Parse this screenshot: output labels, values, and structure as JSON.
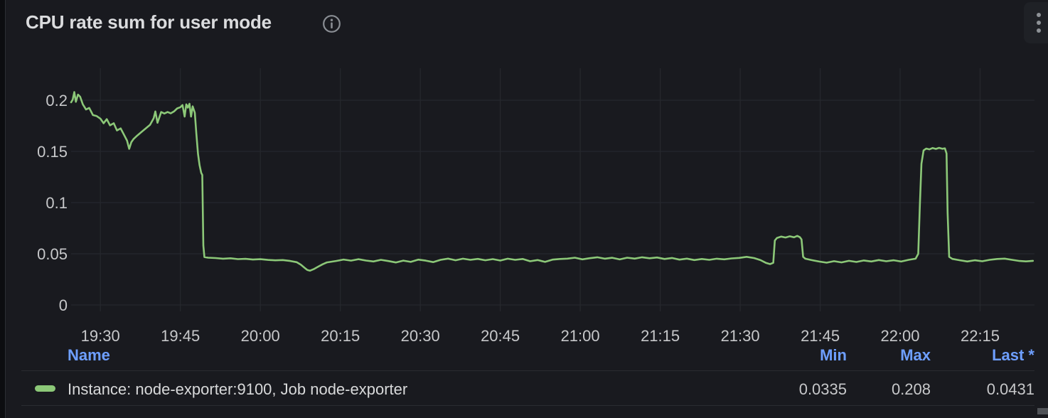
{
  "panel": {
    "title": "CPU rate sum for user mode",
    "info_icon": "info-circle",
    "menu_icon": "kebab-vertical-dots"
  },
  "colors": {
    "panel_bg": "#191a1f",
    "dashboard_bg": "#0c0d10",
    "grid": "#26282d",
    "tick_text": "#c7c8ca",
    "series_green": "#8cc878",
    "legend_header_blue": "#6e9fff",
    "title_text": "#dbdcde"
  },
  "legend": {
    "columns": {
      "name": "Name",
      "min": "Min",
      "max": "Max",
      "last": "Last *"
    },
    "rows": [
      {
        "label": "Instance: node-exporter:9100, Job node-exporter",
        "min": "0.0335",
        "max": "0.208",
        "last": "0.0431",
        "color": "#8cc878"
      }
    ]
  },
  "chart_data": {
    "type": "line",
    "title": "CPU rate sum for user mode",
    "xlabel": "time",
    "ylabel": "",
    "x_unit": "minute-of-day",
    "x_range_minutes": [
      1164.5,
      1345.2
    ],
    "ylim": [
      0,
      0.22
    ],
    "grid": true,
    "legend_position": "bottom-table",
    "x_ticks": [
      {
        "t": 1170,
        "label": "19:30"
      },
      {
        "t": 1185,
        "label": "19:45"
      },
      {
        "t": 1200,
        "label": "20:00"
      },
      {
        "t": 1215,
        "label": "20:15"
      },
      {
        "t": 1230,
        "label": "20:30"
      },
      {
        "t": 1245,
        "label": "20:45"
      },
      {
        "t": 1260,
        "label": "21:00"
      },
      {
        "t": 1275,
        "label": "21:15"
      },
      {
        "t": 1290,
        "label": "21:30"
      },
      {
        "t": 1305,
        "label": "21:45"
      },
      {
        "t": 1320,
        "label": "22:00"
      },
      {
        "t": 1335,
        "label": "22:15"
      }
    ],
    "y_ticks": [
      {
        "v": 0,
        "label": "0"
      },
      {
        "v": 0.05,
        "label": "0.05"
      },
      {
        "v": 0.1,
        "label": "0.1"
      },
      {
        "v": 0.15,
        "label": "0.15"
      },
      {
        "v": 0.2,
        "label": "0.2"
      }
    ],
    "series": [
      {
        "name": "Instance: node-exporter:9100, Job node-exporter",
        "color": "#8cc878",
        "stats": {
          "min": 0.0335,
          "max": 0.208,
          "last": 0.0431
        },
        "points": [
          [
            1164.5,
            0.198
          ],
          [
            1164.8,
            0.2005
          ],
          [
            1165.1,
            0.208
          ],
          [
            1165.4,
            0.1985
          ],
          [
            1165.8,
            0.2055
          ],
          [
            1166.2,
            0.2035
          ],
          [
            1166.7,
            0.196
          ],
          [
            1167.3,
            0.191
          ],
          [
            1167.9,
            0.1925
          ],
          [
            1168.6,
            0.1855
          ],
          [
            1169.3,
            0.1845
          ],
          [
            1170.0,
            0.182
          ],
          [
            1170.6,
            0.1775
          ],
          [
            1171.2,
            0.1815
          ],
          [
            1171.8,
            0.1755
          ],
          [
            1172.5,
            0.1775
          ],
          [
            1173.1,
            0.1705
          ],
          [
            1173.8,
            0.1725
          ],
          [
            1174.4,
            0.1665
          ],
          [
            1175.0,
            0.1605
          ],
          [
            1175.4,
            0.1525
          ],
          [
            1175.8,
            0.159
          ],
          [
            1176.2,
            0.162
          ],
          [
            1176.9,
            0.1655
          ],
          [
            1177.7,
            0.169
          ],
          [
            1178.5,
            0.1725
          ],
          [
            1179.3,
            0.176
          ],
          [
            1180.0,
            0.1825
          ],
          [
            1180.3,
            0.189
          ],
          [
            1180.7,
            0.178
          ],
          [
            1181.1,
            0.184
          ],
          [
            1181.4,
            0.1885
          ],
          [
            1182.0,
            0.187
          ],
          [
            1182.6,
            0.1885
          ],
          [
            1183.2,
            0.1872
          ],
          [
            1183.8,
            0.189
          ],
          [
            1184.4,
            0.192
          ],
          [
            1185.0,
            0.1932
          ],
          [
            1185.4,
            0.1953
          ],
          [
            1185.8,
            0.184
          ],
          [
            1186.1,
            0.196
          ],
          [
            1186.4,
            0.1928
          ],
          [
            1186.7,
            0.1965
          ],
          [
            1187.0,
            0.184
          ],
          [
            1187.3,
            0.194
          ],
          [
            1187.7,
            0.1878
          ],
          [
            1188.0,
            0.167
          ],
          [
            1188.3,
            0.1475
          ],
          [
            1188.6,
            0.1365
          ],
          [
            1188.9,
            0.129
          ],
          [
            1189.1,
            0.127
          ],
          [
            1189.3,
            0.058
          ],
          [
            1189.5,
            0.0468
          ],
          [
            1190.2,
            0.0462
          ],
          [
            1191.6,
            0.0458
          ],
          [
            1193.0,
            0.0452
          ],
          [
            1194.4,
            0.0456
          ],
          [
            1195.8,
            0.0448
          ],
          [
            1197.2,
            0.0451
          ],
          [
            1198.6,
            0.0444
          ],
          [
            1200.0,
            0.0447
          ],
          [
            1201.4,
            0.044
          ],
          [
            1202.8,
            0.0436
          ],
          [
            1204.2,
            0.0439
          ],
          [
            1205.6,
            0.043
          ],
          [
            1206.8,
            0.0418
          ],
          [
            1207.6,
            0.0393
          ],
          [
            1208.3,
            0.0363
          ],
          [
            1208.8,
            0.0342
          ],
          [
            1209.3,
            0.0335
          ],
          [
            1210.1,
            0.0352
          ],
          [
            1210.9,
            0.0376
          ],
          [
            1211.7,
            0.0398
          ],
          [
            1212.5,
            0.0416
          ],
          [
            1214.2,
            0.043
          ],
          [
            1215.6,
            0.0444
          ],
          [
            1217.0,
            0.0433
          ],
          [
            1218.4,
            0.0447
          ],
          [
            1219.8,
            0.0434
          ],
          [
            1221.2,
            0.0425
          ],
          [
            1222.6,
            0.0441
          ],
          [
            1224.0,
            0.0429
          ],
          [
            1225.4,
            0.0415
          ],
          [
            1226.8,
            0.0433
          ],
          [
            1228.2,
            0.0421
          ],
          [
            1229.6,
            0.0443
          ],
          [
            1231.0,
            0.0433
          ],
          [
            1232.4,
            0.0419
          ],
          [
            1233.8,
            0.0441
          ],
          [
            1235.2,
            0.0453
          ],
          [
            1236.6,
            0.0437
          ],
          [
            1238.0,
            0.0452
          ],
          [
            1239.4,
            0.0441
          ],
          [
            1240.8,
            0.045
          ],
          [
            1242.2,
            0.0437
          ],
          [
            1243.6,
            0.0448
          ],
          [
            1245.0,
            0.0434
          ],
          [
            1246.4,
            0.0452
          ],
          [
            1247.8,
            0.0441
          ],
          [
            1249.2,
            0.0449
          ],
          [
            1250.6,
            0.0427
          ],
          [
            1252.0,
            0.0439
          ],
          [
            1253.4,
            0.0421
          ],
          [
            1254.8,
            0.0443
          ],
          [
            1256.2,
            0.0449
          ],
          [
            1257.6,
            0.0453
          ],
          [
            1259.0,
            0.0462
          ],
          [
            1260.4,
            0.0446
          ],
          [
            1261.8,
            0.0457
          ],
          [
            1263.2,
            0.0466
          ],
          [
            1264.6,
            0.0452
          ],
          [
            1266.0,
            0.0461
          ],
          [
            1267.4,
            0.0445
          ],
          [
            1268.8,
            0.0462
          ],
          [
            1270.2,
            0.0453
          ],
          [
            1271.6,
            0.0466
          ],
          [
            1273.0,
            0.0456
          ],
          [
            1274.4,
            0.0464
          ],
          [
            1275.8,
            0.0449
          ],
          [
            1277.2,
            0.0459
          ],
          [
            1278.6,
            0.0443
          ],
          [
            1280.0,
            0.0453
          ],
          [
            1281.4,
            0.0439
          ],
          [
            1282.8,
            0.0449
          ],
          [
            1284.2,
            0.0441
          ],
          [
            1285.6,
            0.0452
          ],
          [
            1287.0,
            0.0446
          ],
          [
            1288.4,
            0.0455
          ],
          [
            1289.8,
            0.046
          ],
          [
            1291.2,
            0.047
          ],
          [
            1292.6,
            0.0458
          ],
          [
            1293.8,
            0.0438
          ],
          [
            1294.8,
            0.0412
          ],
          [
            1295.6,
            0.0399
          ],
          [
            1296.2,
            0.0412
          ],
          [
            1296.5,
            0.063
          ],
          [
            1296.9,
            0.0655
          ],
          [
            1297.7,
            0.0668
          ],
          [
            1298.5,
            0.0659
          ],
          [
            1299.3,
            0.0671
          ],
          [
            1300.1,
            0.0661
          ],
          [
            1300.7,
            0.0675
          ],
          [
            1301.2,
            0.0662
          ],
          [
            1301.5,
            0.064
          ],
          [
            1301.8,
            0.047
          ],
          [
            1302.2,
            0.0452
          ],
          [
            1303.4,
            0.0438
          ],
          [
            1304.8,
            0.0424
          ],
          [
            1306.2,
            0.0413
          ],
          [
            1307.6,
            0.0428
          ],
          [
            1309.0,
            0.0416
          ],
          [
            1310.4,
            0.0431
          ],
          [
            1311.8,
            0.042
          ],
          [
            1313.2,
            0.0435
          ],
          [
            1314.6,
            0.0425
          ],
          [
            1316.0,
            0.0439
          ],
          [
            1317.4,
            0.0427
          ],
          [
            1318.8,
            0.0437
          ],
          [
            1320.2,
            0.0424
          ],
          [
            1321.6,
            0.0441
          ],
          [
            1322.9,
            0.0452
          ],
          [
            1323.4,
            0.05
          ],
          [
            1323.7,
            0.098
          ],
          [
            1324.0,
            0.138
          ],
          [
            1324.4,
            0.151
          ],
          [
            1324.9,
            0.1528
          ],
          [
            1325.5,
            0.152
          ],
          [
            1326.1,
            0.1533
          ],
          [
            1326.7,
            0.1524
          ],
          [
            1327.3,
            0.1535
          ],
          [
            1327.9,
            0.1526
          ],
          [
            1328.4,
            0.153
          ],
          [
            1328.7,
            0.148
          ],
          [
            1328.9,
            0.09
          ],
          [
            1329.2,
            0.047
          ],
          [
            1329.8,
            0.045
          ],
          [
            1331.2,
            0.0437
          ],
          [
            1332.6,
            0.0425
          ],
          [
            1334.0,
            0.0437
          ],
          [
            1335.4,
            0.0427
          ],
          [
            1336.8,
            0.0441
          ],
          [
            1338.2,
            0.0449
          ],
          [
            1339.6,
            0.0453
          ],
          [
            1341.0,
            0.0441
          ],
          [
            1342.4,
            0.043
          ],
          [
            1343.6,
            0.0426
          ],
          [
            1344.9,
            0.0431
          ]
        ]
      }
    ]
  }
}
